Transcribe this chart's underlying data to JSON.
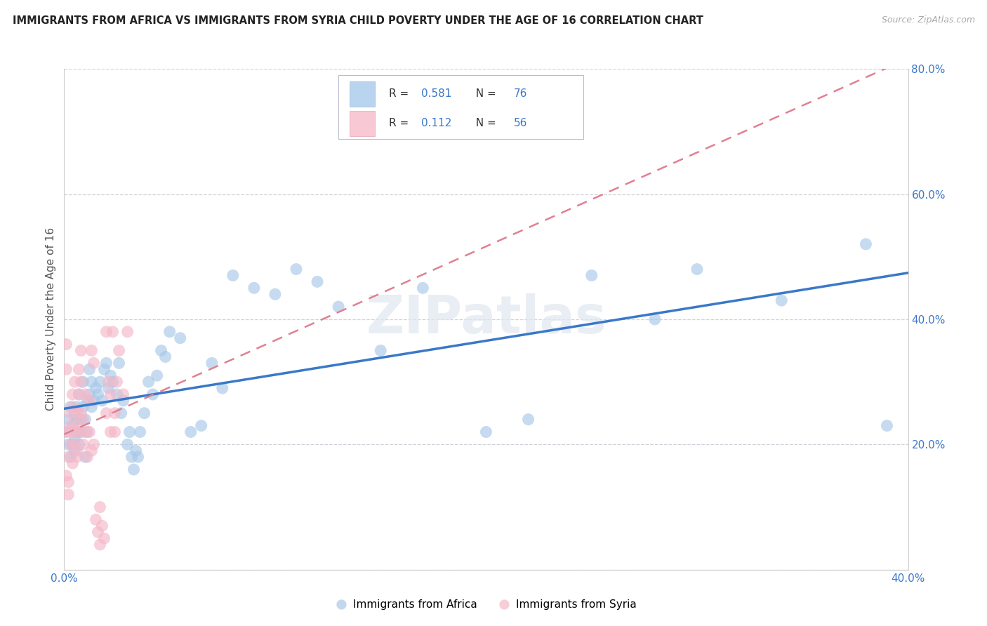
{
  "title": "IMMIGRANTS FROM AFRICA VS IMMIGRANTS FROM SYRIA CHILD POVERTY UNDER THE AGE OF 16 CORRELATION CHART",
  "source": "Source: ZipAtlas.com",
  "ylabel": "Child Poverty Under the Age of 16",
  "xlim": [
    0.0,
    0.4
  ],
  "ylim": [
    0.0,
    0.8
  ],
  "africa_R": 0.581,
  "africa_N": 76,
  "syria_R": 0.112,
  "syria_N": 56,
  "africa_color": "#a8c8e8",
  "syria_color": "#f4b8c8",
  "africa_line_color": "#3a78c9",
  "syria_line_color": "#e08090",
  "africa_legend_color": "#b8d4ee",
  "syria_legend_color": "#f8c8d4",
  "r_value_color": "#3a78c9",
  "n_value_color": "#3a78c9",
  "watermark": "ZIPatlas",
  "legend_africa_label": "Immigrants from Africa",
  "legend_syria_label": "Immigrants from Syria",
  "africa_scatter_x": [
    0.001,
    0.002,
    0.002,
    0.003,
    0.003,
    0.004,
    0.004,
    0.005,
    0.005,
    0.005,
    0.006,
    0.006,
    0.006,
    0.007,
    0.007,
    0.008,
    0.008,
    0.009,
    0.009,
    0.01,
    0.01,
    0.011,
    0.011,
    0.012,
    0.012,
    0.013,
    0.013,
    0.014,
    0.015,
    0.016,
    0.017,
    0.018,
    0.019,
    0.02,
    0.021,
    0.022,
    0.023,
    0.025,
    0.026,
    0.027,
    0.028,
    0.03,
    0.031,
    0.032,
    0.033,
    0.034,
    0.035,
    0.036,
    0.038,
    0.04,
    0.042,
    0.044,
    0.046,
    0.048,
    0.05,
    0.055,
    0.06,
    0.065,
    0.07,
    0.075,
    0.08,
    0.09,
    0.1,
    0.11,
    0.12,
    0.13,
    0.15,
    0.17,
    0.2,
    0.22,
    0.25,
    0.28,
    0.3,
    0.34,
    0.38,
    0.39
  ],
  "africa_scatter_y": [
    0.22,
    0.24,
    0.2,
    0.18,
    0.26,
    0.2,
    0.23,
    0.19,
    0.21,
    0.25,
    0.22,
    0.26,
    0.24,
    0.2,
    0.28,
    0.24,
    0.22,
    0.3,
    0.26,
    0.18,
    0.24,
    0.27,
    0.22,
    0.28,
    0.32,
    0.26,
    0.3,
    0.27,
    0.29,
    0.28,
    0.3,
    0.27,
    0.32,
    0.33,
    0.29,
    0.31,
    0.3,
    0.28,
    0.33,
    0.25,
    0.27,
    0.2,
    0.22,
    0.18,
    0.16,
    0.19,
    0.18,
    0.22,
    0.25,
    0.3,
    0.28,
    0.31,
    0.35,
    0.34,
    0.38,
    0.37,
    0.22,
    0.23,
    0.33,
    0.29,
    0.47,
    0.45,
    0.44,
    0.48,
    0.46,
    0.42,
    0.35,
    0.45,
    0.22,
    0.24,
    0.47,
    0.4,
    0.48,
    0.43,
    0.52,
    0.23
  ],
  "syria_scatter_x": [
    0.0,
    0.001,
    0.001,
    0.001,
    0.002,
    0.002,
    0.002,
    0.003,
    0.003,
    0.003,
    0.003,
    0.004,
    0.004,
    0.004,
    0.005,
    0.005,
    0.005,
    0.006,
    0.006,
    0.006,
    0.006,
    0.007,
    0.007,
    0.007,
    0.008,
    0.008,
    0.008,
    0.009,
    0.009,
    0.01,
    0.01,
    0.011,
    0.012,
    0.012,
    0.013,
    0.013,
    0.014,
    0.014,
    0.015,
    0.016,
    0.017,
    0.017,
    0.018,
    0.019,
    0.02,
    0.02,
    0.021,
    0.022,
    0.022,
    0.023,
    0.024,
    0.024,
    0.025,
    0.026,
    0.028,
    0.03
  ],
  "syria_scatter_y": [
    0.22,
    0.36,
    0.32,
    0.15,
    0.14,
    0.18,
    0.12,
    0.22,
    0.2,
    0.25,
    0.23,
    0.17,
    0.26,
    0.28,
    0.22,
    0.3,
    0.2,
    0.23,
    0.18,
    0.25,
    0.19,
    0.32,
    0.28,
    0.22,
    0.3,
    0.35,
    0.25,
    0.24,
    0.2,
    0.28,
    0.22,
    0.18,
    0.27,
    0.22,
    0.19,
    0.35,
    0.2,
    0.33,
    0.08,
    0.06,
    0.04,
    0.1,
    0.07,
    0.05,
    0.38,
    0.25,
    0.3,
    0.28,
    0.22,
    0.38,
    0.25,
    0.22,
    0.3,
    0.35,
    0.28,
    0.38
  ]
}
